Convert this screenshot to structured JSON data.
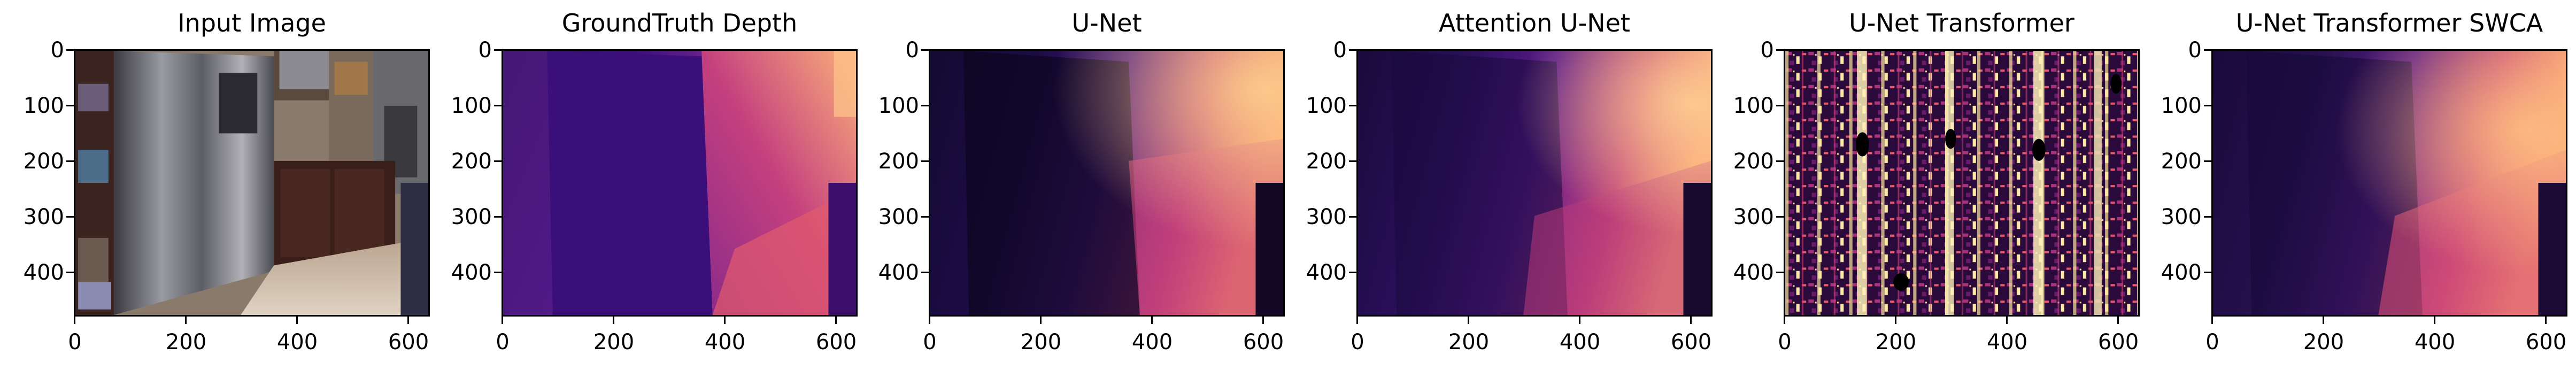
{
  "figure": {
    "panels": [
      {
        "title": "Input Image",
        "kind": "rgb-photo"
      },
      {
        "title": "GroundTruth Depth",
        "kind": "magma-depth"
      },
      {
        "title": "U-Net",
        "kind": "magma-depth-smooth"
      },
      {
        "title": "Attention U-Net",
        "kind": "magma-depth-smooth"
      },
      {
        "title": "U-Net Transformer",
        "kind": "magma-noisy"
      },
      {
        "title": "U-Net Transformer SWCA",
        "kind": "magma-depth-smooth"
      }
    ],
    "y_ticks": [
      "0",
      "100",
      "200",
      "300",
      "400"
    ],
    "x_ticks": [
      "0",
      "200",
      "400",
      "600"
    ],
    "colormap": "magma"
  }
}
